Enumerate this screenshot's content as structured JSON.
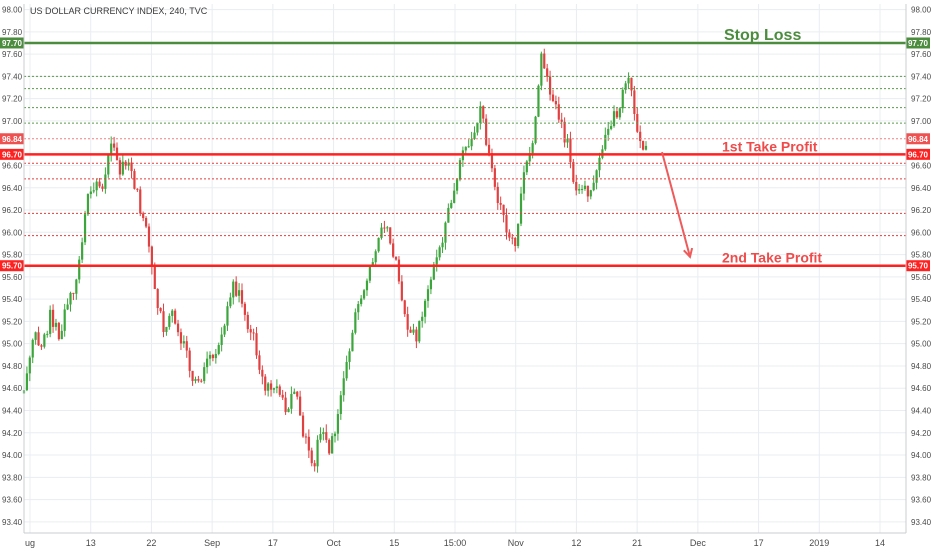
{
  "chart_data": {
    "type": "candlestick",
    "title": "US DOLLAR CURRENCY INDEX, 240, TVC",
    "ylim": [
      93.3,
      98.05
    ],
    "y_ticks": [
      {
        "v": 93.4,
        "label": "93.40"
      },
      {
        "v": 93.6,
        "label": "93.60"
      },
      {
        "v": 93.8,
        "label": "93.80"
      },
      {
        "v": 94.0,
        "label": "94.00"
      },
      {
        "v": 94.2,
        "label": "94.20"
      },
      {
        "v": 94.4,
        "label": "94.40"
      },
      {
        "v": 94.6,
        "label": "94.60"
      },
      {
        "v": 94.8,
        "label": "94.80"
      },
      {
        "v": 95.0,
        "label": "95.00"
      },
      {
        "v": 95.2,
        "label": "95.20"
      },
      {
        "v": 95.4,
        "label": "95.40"
      },
      {
        "v": 95.6,
        "label": "95.60"
      },
      {
        "v": 95.8,
        "label": "95.80"
      },
      {
        "v": 96.0,
        "label": "96.00"
      },
      {
        "v": 96.2,
        "label": "96.20"
      },
      {
        "v": 96.4,
        "label": "96.40"
      },
      {
        "v": 96.6,
        "label": "96.60"
      },
      {
        "v": 97.0,
        "label": "97.00"
      },
      {
        "v": 97.2,
        "label": "97.20"
      },
      {
        "v": 97.4,
        "label": "97.40"
      },
      {
        "v": 97.6,
        "label": "97.60"
      },
      {
        "v": 97.8,
        "label": "97.80"
      },
      {
        "v": 98.0,
        "label": "98.00"
      }
    ],
    "x_ticks": [
      "ug",
      "13",
      "22",
      "Sep",
      "17",
      "Oct",
      "15",
      "15:00",
      "Nov",
      "12",
      "21",
      "Dec",
      "17",
      "2019",
      "14"
    ],
    "price_series": [
      94.55,
      95.1,
      94.95,
      95.25,
      95.05,
      95.4,
      95.55,
      96.2,
      96.45,
      96.35,
      96.8,
      96.55,
      96.6,
      96.3,
      96.05,
      95.4,
      95.15,
      95.3,
      95.05,
      94.75,
      94.65,
      94.95,
      94.85,
      95.2,
      95.55,
      95.3,
      95.1,
      94.75,
      94.55,
      94.6,
      94.4,
      94.55,
      94.15,
      93.9,
      94.25,
      94.05,
      94.45,
      94.85,
      95.3,
      95.55,
      95.85,
      96.05,
      95.9,
      95.5,
      95.05,
      95.1,
      95.4,
      95.8,
      96.0,
      96.4,
      96.7,
      96.85,
      97.1,
      96.75,
      96.3,
      96.05,
      95.85,
      96.5,
      96.75,
      97.55,
      97.3,
      97.05,
      96.8,
      96.35,
      96.35,
      96.4,
      96.75,
      96.95,
      97.15,
      97.4,
      96.9,
      96.72
    ],
    "projection": {
      "from_value": 96.72,
      "to_value": 95.78
    },
    "levels": [
      {
        "value": 97.7,
        "style": "solid",
        "color": "#4c8c3e",
        "width": 2.5,
        "tag": "97.70",
        "label": "Stop Loss",
        "label_color": "#4c8c3e"
      },
      {
        "value": 97.4,
        "style": "dotted",
        "color": "#5a9a4a",
        "width": 1
      },
      {
        "value": 97.29,
        "style": "dotted",
        "color": "#5a9a4a",
        "width": 1
      },
      {
        "value": 97.12,
        "style": "dotted",
        "color": "#5a9a4a",
        "width": 1
      },
      {
        "value": 96.98,
        "style": "dotted",
        "color": "#5a9a4a",
        "width": 1
      },
      {
        "value": 96.84,
        "style": "dotted",
        "color": "#f08080",
        "width": 1,
        "tag": "96.84"
      },
      {
        "value": 96.7,
        "style": "solid",
        "color": "#ff2020",
        "width": 2.5,
        "tag": "96.70",
        "label": "1st Take Profit",
        "label_color": "#ef4b4b"
      },
      {
        "value": 96.62,
        "style": "dotted",
        "color": "#e83a3a",
        "width": 1
      },
      {
        "value": 96.48,
        "style": "dotted",
        "color": "#e83a3a",
        "width": 1
      },
      {
        "value": 96.17,
        "style": "dotted",
        "color": "#e83a3a",
        "width": 1
      },
      {
        "value": 95.97,
        "style": "dotted",
        "color": "#e83a3a",
        "width": 1
      },
      {
        "value": 95.7,
        "style": "solid",
        "color": "#ff2020",
        "width": 2.5,
        "tag": "95.70",
        "label": "2nd Take Profit",
        "label_color": "#ef4b4b"
      }
    ],
    "colors": {
      "up": "#3ca53c",
      "down": "#e04040",
      "grid": "#e9edf1",
      "arrow": "#ef5a5a"
    },
    "grid": true
  }
}
